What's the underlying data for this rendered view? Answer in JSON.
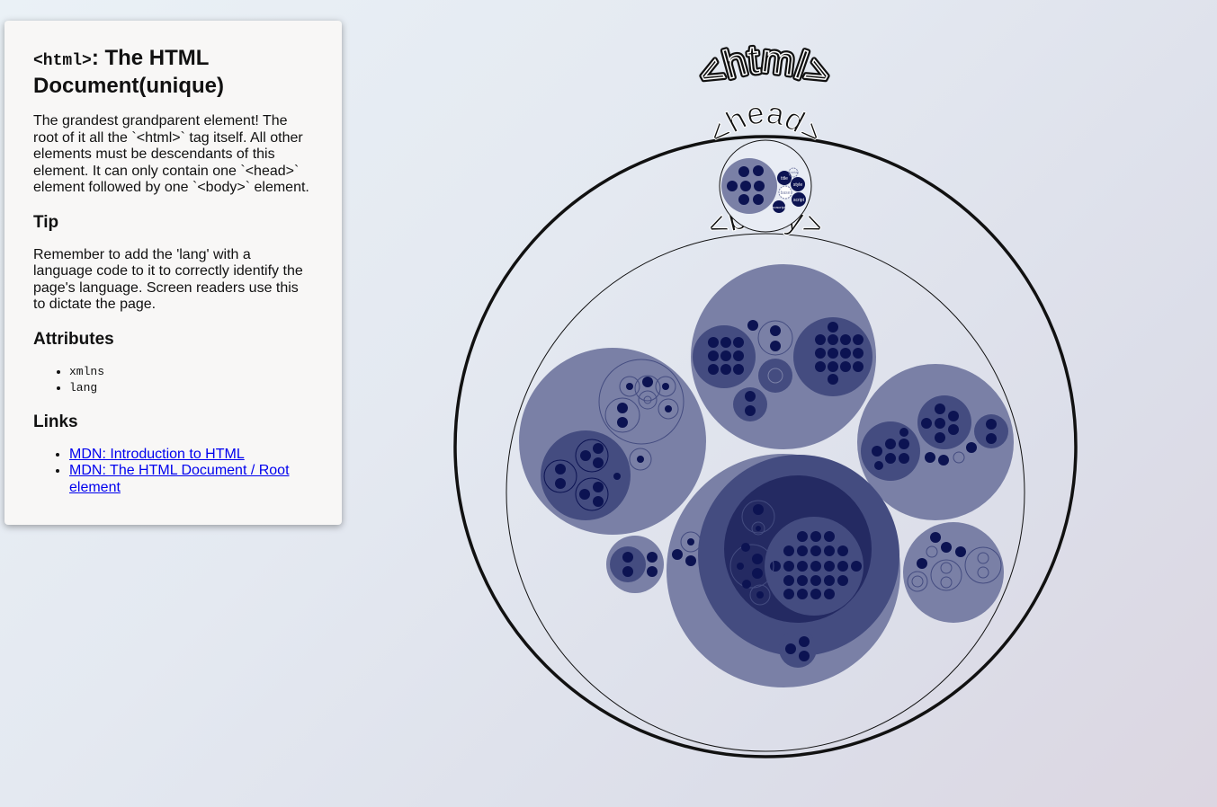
{
  "panel": {
    "title_tag": "<html>",
    "title_rest": ": The HTML Document(unique)",
    "description": "The grandest grandparent element! The root of it all the `<html>` tag itself. All other elements must be descendants of this element. It can only contain one `<head>` element followed by one `<body>` element.",
    "tip_heading": "Tip",
    "tip_text": "Remember to add the 'lang' with a language code to it to correctly identify the page's language. Screen readers use this to dictate the page.",
    "attributes_heading": "Attributes",
    "attributes": [
      "xmlns",
      "lang"
    ],
    "links_heading": "Links",
    "links": [
      "MDN: Introduction to HTML",
      "MDN: The HTML Document / Root element"
    ]
  },
  "viz": {
    "html_label": "<html>",
    "head_label": "<head>",
    "body_label": "<body>",
    "head_child_labels": [
      "title",
      "style",
      "base",
      "script",
      "noscript",
      "meta"
    ],
    "colors": {
      "outline": "#111111",
      "level_light": "#7a80a6",
      "level_mid": "#444c80",
      "level_dark": "#242a62",
      "leaf": "#0c1352"
    }
  }
}
